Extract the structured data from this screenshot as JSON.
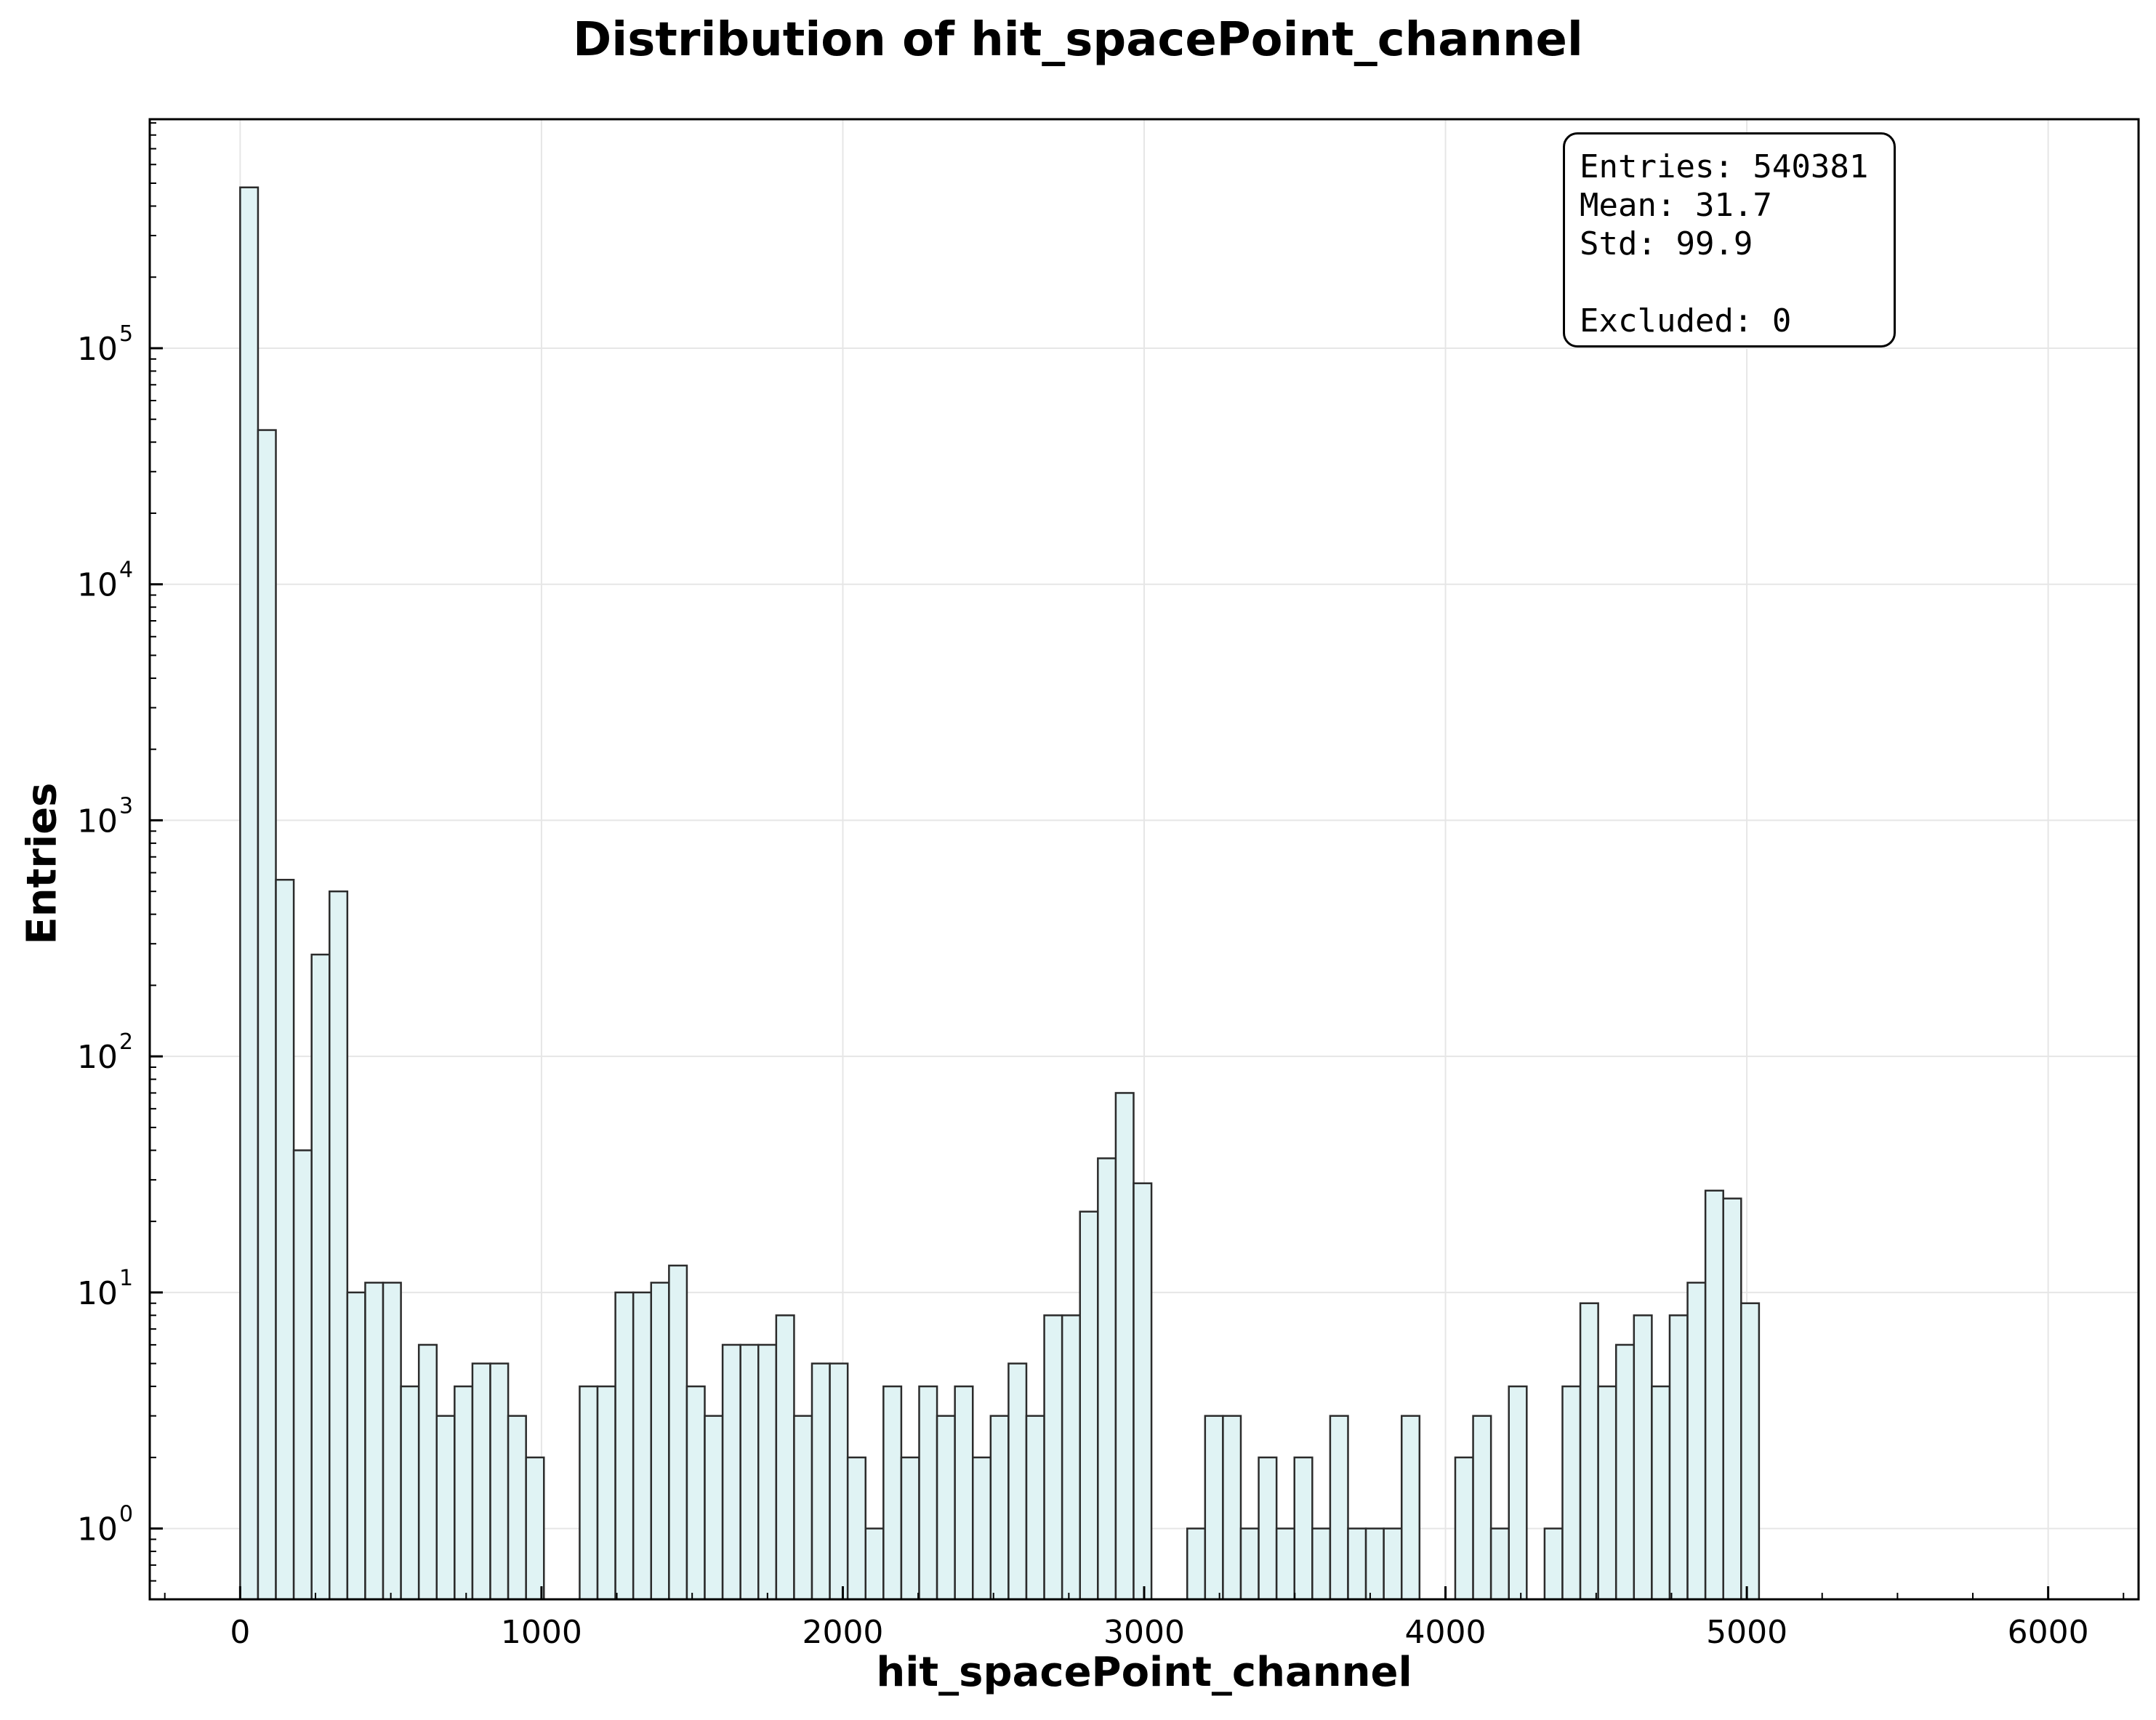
{
  "chart_data": {
    "type": "bar",
    "title": "Distribution of hit_spacePoint_channel",
    "xlabel": "hit_spacePoint_channel",
    "ylabel": "Entries",
    "xlim": [
      -300,
      6300
    ],
    "ylim_log10": [
      -0.3,
      5.97
    ],
    "y_scale": "log",
    "grid": true,
    "bin_start": 0,
    "bin_width": 59.3,
    "values": [
      480000,
      45000,
      560,
      40,
      270,
      500,
      10,
      11,
      11,
      4,
      6,
      3,
      4,
      5,
      5,
      3,
      2,
      0,
      0,
      4,
      4,
      10,
      10,
      11,
      13,
      4,
      3,
      6,
      6,
      6,
      8,
      3,
      5,
      5,
      2,
      1,
      4,
      2,
      4,
      3,
      4,
      2,
      3,
      5,
      3,
      8,
      8,
      22,
      37,
      70,
      29,
      0,
      0,
      1,
      3,
      3,
      1,
      2,
      1,
      2,
      1,
      3,
      1,
      1,
      1,
      3,
      0,
      0,
      2,
      3,
      1,
      4,
      0,
      1,
      4,
      9,
      4,
      6,
      8,
      4,
      8,
      11,
      27,
      25,
      9
    ],
    "x_ticks": [
      0,
      1000,
      2000,
      3000,
      4000,
      5000,
      6000
    ],
    "x_tick_labels": [
      "0",
      "1000",
      "2000",
      "3000",
      "4000",
      "5000",
      "6000"
    ],
    "y_ticks_exp": [
      0,
      1,
      2,
      3,
      4,
      5
    ],
    "y_tick_base": "10",
    "colors": {
      "bar_fill": "#e0f3f4",
      "bar_edge": "#2b2b2b",
      "grid": "#e6e6e6"
    }
  },
  "stats": {
    "entries": "Entries: 540381",
    "mean": "Mean: 31.7",
    "std": "Std: 99.9",
    "excluded": "Excluded: 0"
  }
}
